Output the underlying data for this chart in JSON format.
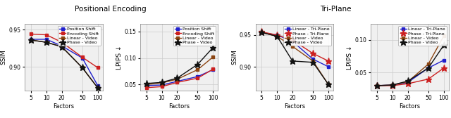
{
  "factors": [
    5,
    10,
    20,
    50,
    100
  ],
  "title_pe": "Positional Encoding",
  "title_tp": "Tri-Plane",
  "pe_ssim_keys": [
    "Position Shift",
    "Encoding Shift",
    "Linear - Video",
    "Phase - Video"
  ],
  "pe_ssim": {
    "Position Shift": [
      0.937,
      0.937,
      0.928,
      0.912,
      0.875
    ],
    "Encoding Shift": [
      0.944,
      0.943,
      0.933,
      0.913,
      0.899
    ],
    "Linear - Video": [
      0.936,
      0.933,
      0.927,
      0.899,
      0.872
    ],
    "Phase - Video": [
      0.936,
      0.933,
      0.927,
      0.899,
      0.872
    ]
  },
  "pe_lpips_keys": [
    "Position Shift",
    "Encoding Shift",
    "Linear - Video",
    "Phase - Video"
  ],
  "pe_lpips": {
    "Position Shift": [
      0.048,
      0.049,
      0.056,
      0.065,
      0.078
    ],
    "Encoding Shift": [
      0.044,
      0.046,
      0.054,
      0.062,
      0.079
    ],
    "Linear - Video": [
      0.05,
      0.053,
      0.06,
      0.078,
      0.102
    ],
    "Phase - Video": [
      0.052,
      0.054,
      0.062,
      0.088,
      0.12
    ]
  },
  "tp_ssim_keys": [
    "Linear - Tri-Plane",
    "Phase - Tri-Plane",
    "Linear - Video",
    "Phase - Video"
  ],
  "tp_ssim": {
    "Linear - Tri-Plane": [
      0.954,
      0.95,
      0.94,
      0.912,
      0.9
    ],
    "Phase - Tri-Plane": [
      0.955,
      0.95,
      0.942,
      0.921,
      0.909
    ],
    "Linear - Video": [
      0.954,
      0.948,
      0.932,
      0.909,
      0.872
    ],
    "Phase - Video": [
      0.954,
      0.948,
      0.909,
      0.907,
      0.872
    ]
  },
  "tp_lpips_keys": [
    "Linear - Tri-Plane",
    "Phase - Tri-Plane",
    "Linear - Video",
    "Phase - Video"
  ],
  "tp_lpips": {
    "Linear - Tri-Plane": [
      0.03,
      0.031,
      0.035,
      0.057,
      0.069
    ],
    "Phase - Tri-Plane": [
      0.03,
      0.03,
      0.033,
      0.04,
      0.057
    ],
    "Linear - Video": [
      0.03,
      0.031,
      0.036,
      0.063,
      0.106
    ],
    "Phase - Video": [
      0.03,
      0.031,
      0.037,
      0.057,
      0.092
    ]
  },
  "colors_pe": {
    "Position Shift": "#2020cc",
    "Encoding Shift": "#cc2020",
    "Linear - Video": "#8B4513",
    "Phase - Video": "#111111"
  },
  "colors_tp": {
    "Linear - Tri-Plane": "#2020cc",
    "Phase - Tri-Plane": "#cc2020",
    "Linear - Video": "#8B4513",
    "Phase - Video": "#111111"
  },
  "marker_sq": "s",
  "marker_star": "*",
  "linewidth": 1.0,
  "markersize_sq": 3.5,
  "markersize_star": 6.5,
  "xlabel": "Factors",
  "ylabel_ssim": "SSIM",
  "ylabel_lpips": "LPIPS ↓",
  "ssim_ylim_pe": [
    0.868,
    0.958
  ],
  "lpips_ylim_pe": [
    0.038,
    0.165
  ],
  "ssim_ylim_tp": [
    0.862,
    0.968
  ],
  "lpips_ylim_tp": [
    0.022,
    0.125
  ],
  "ssim_yticks_pe": [
    0.9,
    0.95
  ],
  "lpips_yticks_pe": [
    0.05,
    0.1,
    0.15
  ],
  "ssim_yticks_tp": [
    0.9,
    0.95
  ],
  "lpips_yticks_tp": [
    0.05,
    0.1
  ],
  "bg_color": "#f0f0f0",
  "grid_color": "#cccccc"
}
